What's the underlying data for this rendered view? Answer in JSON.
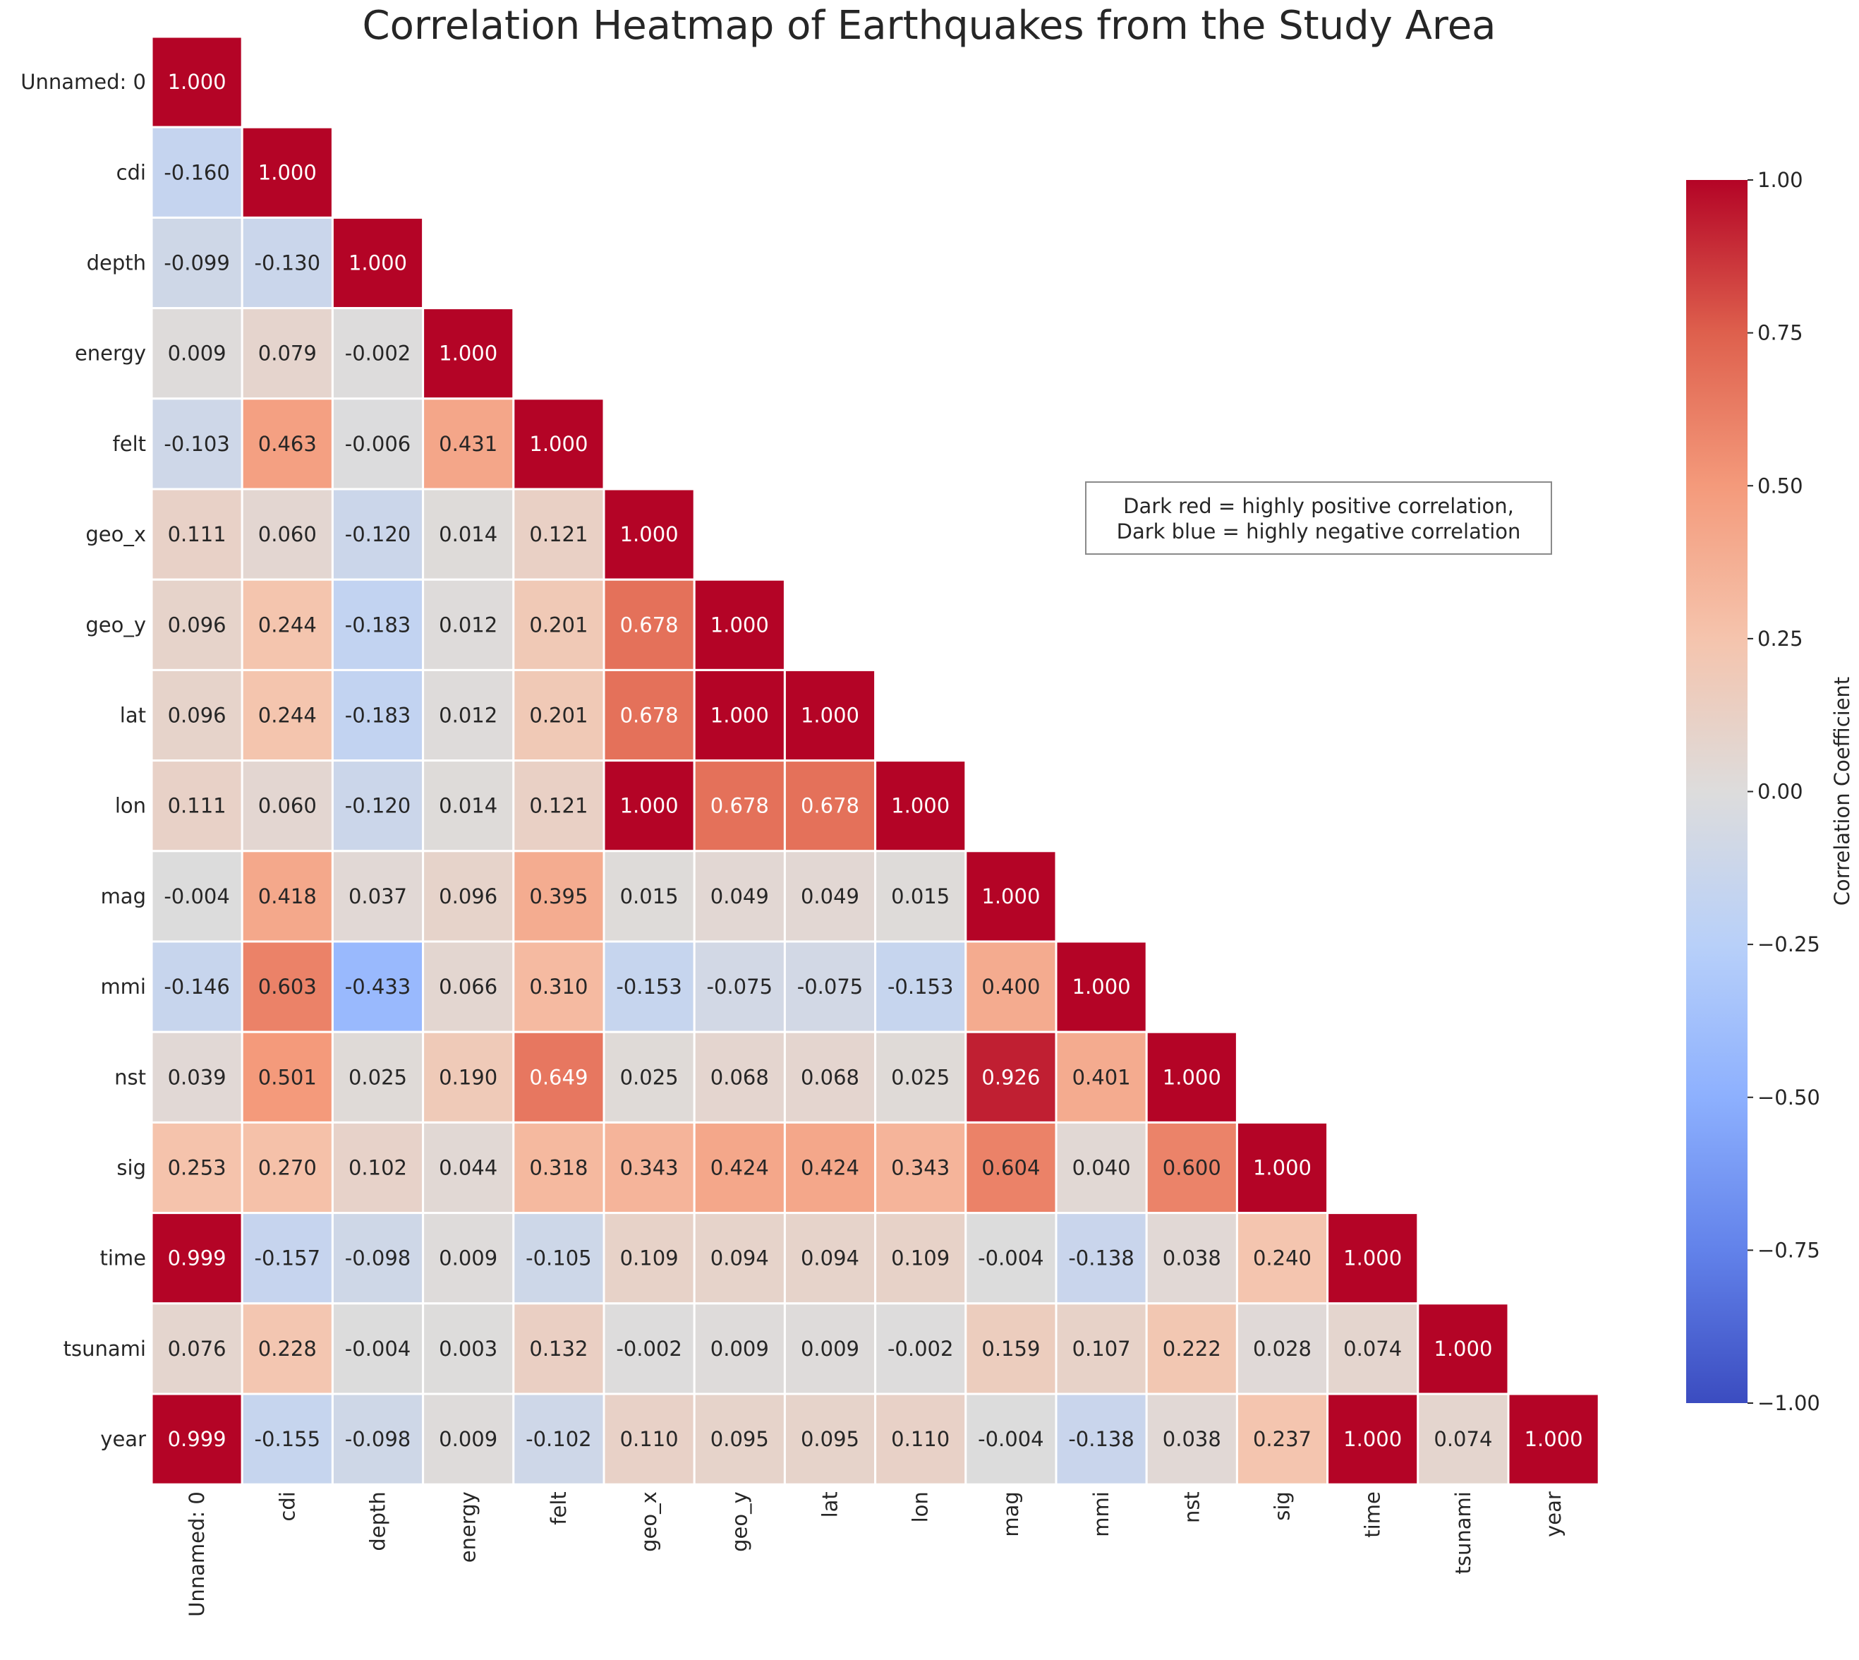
{
  "chart_data": {
    "type": "heatmap",
    "title": "Correlation Heatmap of Earthquakes from the Study Area",
    "variables": [
      "Unnamed: 0",
      "cdi",
      "depth",
      "energy",
      "felt",
      "geo_x",
      "geo_y",
      "lat",
      "lon",
      "mag",
      "mmi",
      "nst",
      "sig",
      "time",
      "tsunami",
      "year"
    ],
    "matrix": [
      [
        1.0
      ],
      [
        -0.16,
        1.0
      ],
      [
        -0.099,
        -0.13,
        1.0
      ],
      [
        0.009,
        0.079,
        -0.002,
        1.0
      ],
      [
        -0.103,
        0.463,
        -0.006,
        0.431,
        1.0
      ],
      [
        0.111,
        0.06,
        -0.12,
        0.014,
        0.121,
        1.0
      ],
      [
        0.096,
        0.244,
        -0.183,
        0.012,
        0.201,
        0.678,
        1.0
      ],
      [
        0.096,
        0.244,
        -0.183,
        0.012,
        0.201,
        0.678,
        1.0,
        1.0
      ],
      [
        0.111,
        0.06,
        -0.12,
        0.014,
        0.121,
        1.0,
        0.678,
        0.678,
        1.0
      ],
      [
        -0.004,
        0.418,
        0.037,
        0.096,
        0.395,
        0.015,
        0.049,
        0.049,
        0.015,
        1.0
      ],
      [
        -0.146,
        0.603,
        -0.433,
        0.066,
        0.31,
        -0.153,
        -0.075,
        -0.075,
        -0.153,
        0.4,
        1.0
      ],
      [
        0.039,
        0.501,
        0.025,
        0.19,
        0.649,
        0.025,
        0.068,
        0.068,
        0.025,
        0.926,
        0.401,
        1.0
      ],
      [
        0.253,
        0.27,
        0.102,
        0.044,
        0.318,
        0.343,
        0.424,
        0.424,
        0.343,
        0.604,
        0.04,
        0.6,
        1.0
      ],
      [
        0.999,
        -0.157,
        -0.098,
        0.009,
        -0.105,
        0.109,
        0.094,
        0.094,
        0.109,
        -0.004,
        -0.138,
        0.038,
        0.24,
        1.0
      ],
      [
        0.076,
        0.228,
        -0.004,
        0.003,
        0.132,
        -0.002,
        0.009,
        0.009,
        -0.002,
        0.159,
        0.107,
        0.222,
        0.028,
        0.074,
        1.0
      ],
      [
        0.999,
        -0.155,
        -0.098,
        0.009,
        -0.102,
        0.11,
        0.095,
        0.095,
        0.11,
        -0.004,
        -0.138,
        0.038,
        0.237,
        1.0,
        0.074,
        1.0
      ]
    ],
    "mask": "upper-triangle",
    "colormap": "coolwarm",
    "vmin": -1.0,
    "vmax": 1.0,
    "colorbar": {
      "label": "Correlation Coefficient",
      "ticks": [
        1.0,
        0.75,
        0.5,
        0.25,
        0.0,
        -0.25,
        -0.5,
        -0.75,
        -1.0
      ],
      "tick_labels": [
        "1.00",
        "0.75",
        "0.50",
        "0.25",
        "0.00",
        "−0.25",
        "−0.50",
        "−0.75",
        "−1.00"
      ]
    },
    "annotation": [
      "Dark red = highly positive correlation,",
      "Dark blue = highly negative correlation"
    ],
    "legend_placement": "upper-right box inside plot",
    "grid": false
  }
}
